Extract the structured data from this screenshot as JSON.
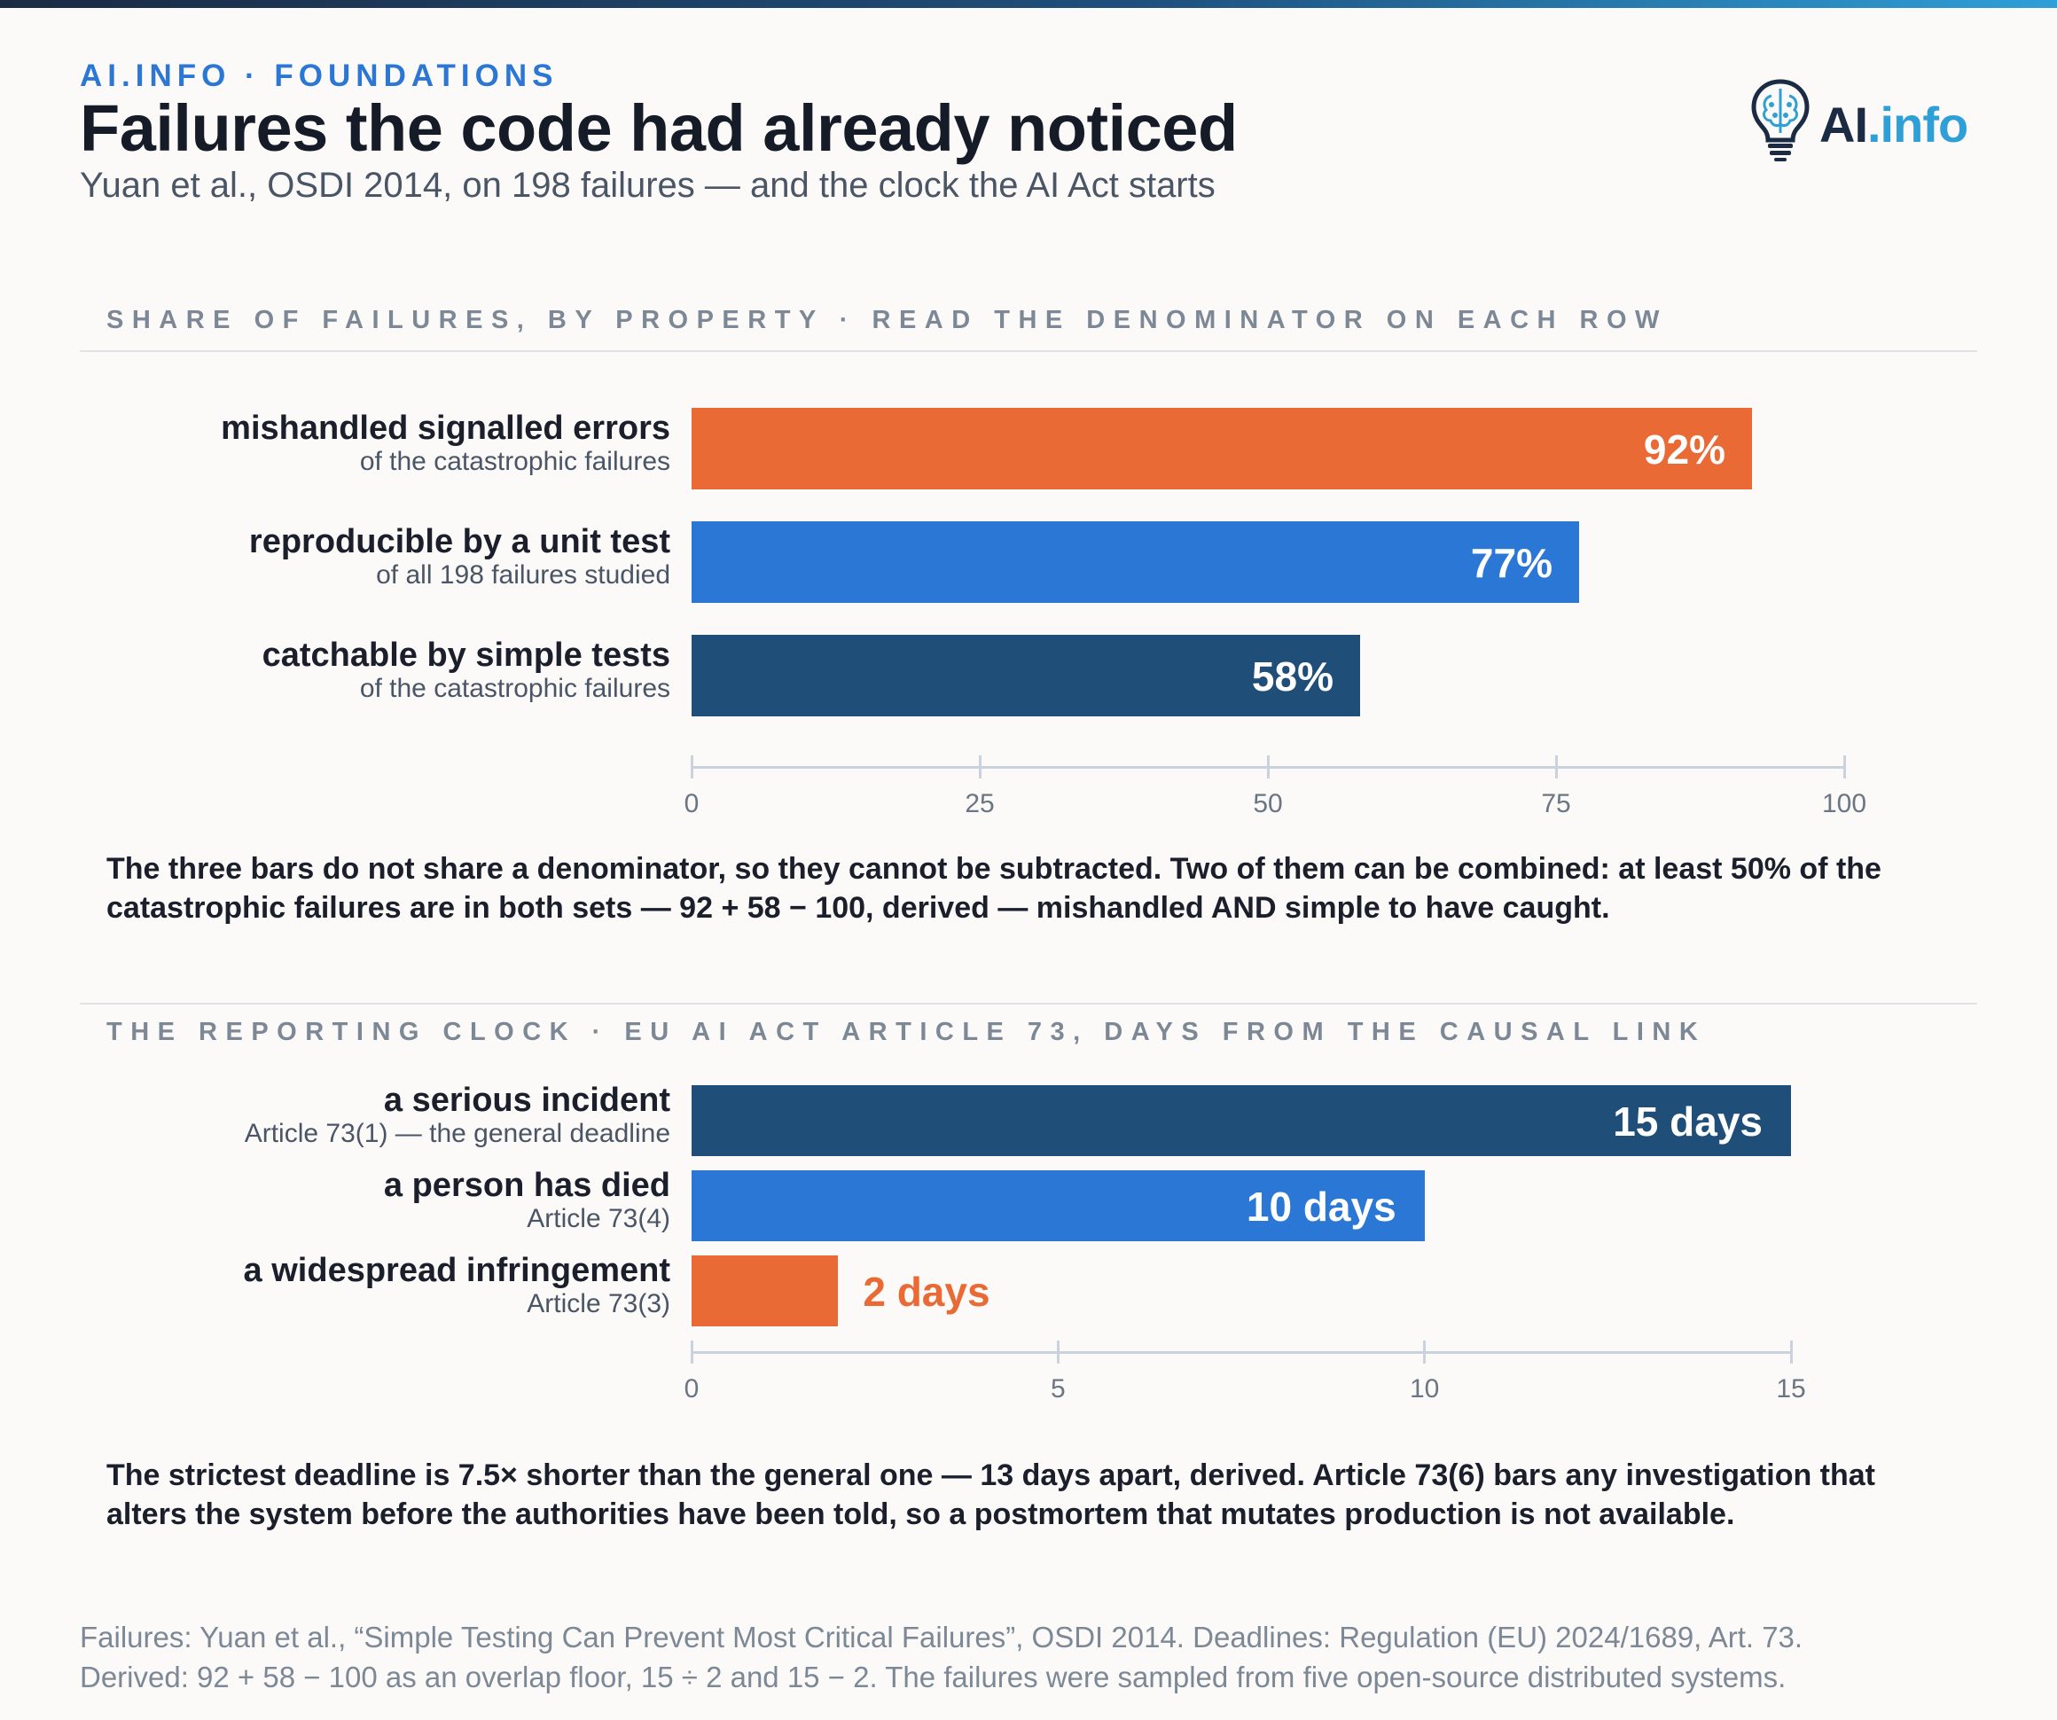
{
  "header": {
    "kicker": "AI.INFO · FOUNDATIONS",
    "title": "Failures the code had already noticed",
    "subtitle": "Yuan et al., OSDI 2014, on 198 failures — and the clock the AI Act starts",
    "logo_text_a": "AI",
    "logo_text_b": ".info"
  },
  "colors": {
    "orange": "#ea6a35",
    "blue": "#2b77d6",
    "navy": "#1f4e79",
    "axis": "#c9d2dd"
  },
  "chart_data": [
    {
      "type": "bar",
      "orientation": "horizontal",
      "section_label": "SHARE OF FAILURES, BY PROPERTY · READ THE DENOMINATOR ON EACH ROW",
      "xlim": [
        0,
        100
      ],
      "ticks": [
        0,
        25,
        50,
        75,
        100
      ],
      "categories": [
        {
          "label": "mishandled signalled errors",
          "sublabel": "of the catastrophic failures",
          "value": 92,
          "value_label": "92%",
          "color": "orange"
        },
        {
          "label": "reproducible by a unit test",
          "sublabel": "of all 198 failures studied",
          "value": 77,
          "value_label": "77%",
          "color": "blue"
        },
        {
          "label": "catchable by simple tests",
          "sublabel": "of the catastrophic failures",
          "value": 58,
          "value_label": "58%",
          "color": "navy"
        }
      ],
      "note": "The three bars do not share a denominator, so they cannot be subtracted. Two of them can be combined: at least 50% of the catastrophic failures are in both sets — 92 + 58 − 100, derived — mishandled AND simple to have caught."
    },
    {
      "type": "bar",
      "orientation": "horizontal",
      "section_label": "THE REPORTING CLOCK · EU AI ACT ARTICLE 73, DAYS FROM THE CAUSAL LINK",
      "xlim": [
        0,
        15
      ],
      "ticks": [
        0,
        5,
        10,
        15
      ],
      "categories": [
        {
          "label": "a serious incident",
          "sublabel": "Article 73(1) — the general deadline",
          "value": 15,
          "value_label": "15 days",
          "color": "navy"
        },
        {
          "label": "a person has died",
          "sublabel": "Article 73(4)",
          "value": 10,
          "value_label": "10 days",
          "color": "blue"
        },
        {
          "label": "a widespread infringement",
          "sublabel": "Article 73(3)",
          "value": 2,
          "value_label": "2 days",
          "color": "orange"
        }
      ],
      "note": "The strictest deadline is 7.5× shorter than the general one — 13 days apart, derived. Article 73(6) bars any investigation that alters the system before the authorities have been told, so a postmortem that mutates production is not available."
    }
  ],
  "source": {
    "line1": "Failures: Yuan et al., “Simple Testing Can Prevent Most Critical Failures”, OSDI 2014. Deadlines: Regulation (EU) 2024/1689, Art. 73.",
    "line2": "Derived: 92 + 58 − 100 as an overlap floor, 15 ÷ 2 and 15 − 2. The failures were sampled from five open-source distributed systems."
  }
}
